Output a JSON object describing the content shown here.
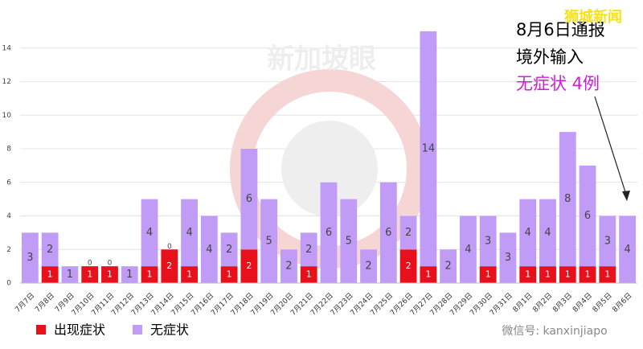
{
  "chart_data": {
    "type": "bar",
    "stacked": true,
    "categories": [
      "7月7日",
      "7月8日",
      "7月9日",
      "7月10日",
      "7月11日",
      "7月12日",
      "7月13日",
      "7月14日",
      "7月15日",
      "7月16日",
      "7月17日",
      "7月18日",
      "7月19日",
      "7月20日",
      "7月21日",
      "7月22日",
      "7月23日",
      "7月24日",
      "7月25日",
      "7月26日",
      "7月27日",
      "7月28日",
      "7月29日",
      "7月30日",
      "7月31日",
      "8月1日",
      "8月2日",
      "8月3日",
      "8月4日",
      "8月5日",
      "8月6日"
    ],
    "series": [
      {
        "name": "出现症状",
        "color": "#e8101a",
        "values": [
          0,
          1,
          0,
          1,
          1,
          0,
          1,
          2,
          1,
          0,
          1,
          2,
          0,
          0,
          1,
          0,
          0,
          0,
          0,
          2,
          1,
          0,
          0,
          1,
          0,
          1,
          1,
          1,
          1,
          1,
          0
        ]
      },
      {
        "name": "无症状",
        "color": "#c09cf7",
        "values": [
          3,
          2,
          1,
          0,
          0,
          1,
          4,
          0,
          4,
          4,
          2,
          6,
          5,
          2,
          2,
          6,
          5,
          2,
          6,
          2,
          14,
          2,
          4,
          3,
          3,
          4,
          4,
          8,
          6,
          3,
          4
        ]
      }
    ],
    "ylim": [
      0,
      16
    ],
    "yticks": [
      0,
      2,
      4,
      6,
      8,
      10,
      12,
      14
    ],
    "grid": true,
    "legend": "bottom-left",
    "annotations": [
      "8月6日通报",
      "境外输入",
      "无症状 4例"
    ],
    "watermarks": [
      "狮城新闻",
      "新加坡眼",
      "微信号: kanxinjiapo"
    ]
  }
}
